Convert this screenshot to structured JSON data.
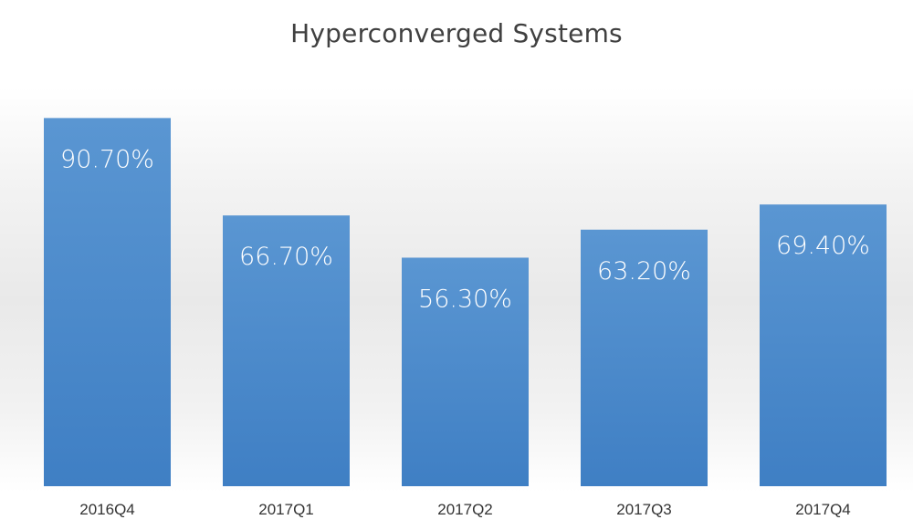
{
  "chart_data": {
    "type": "bar",
    "title": "Hyperconverged Systems",
    "xlabel": "",
    "ylabel": "",
    "categories": [
      "2016Q4",
      "2017Q1",
      "2017Q2",
      "2017Q3",
      "2017Q4"
    ],
    "values": [
      90.7,
      66.7,
      56.3,
      63.2,
      69.4
    ],
    "data_labels": [
      "90.70%",
      "66.70%",
      "56.30%",
      "63.20%",
      "69.40%"
    ],
    "ylim": [
      0,
      100
    ],
    "grid": false,
    "legend": "none",
    "bar_color": "#3f7fc4",
    "bar_color_light": "#5a96d2",
    "label_color": "#ffffff"
  }
}
